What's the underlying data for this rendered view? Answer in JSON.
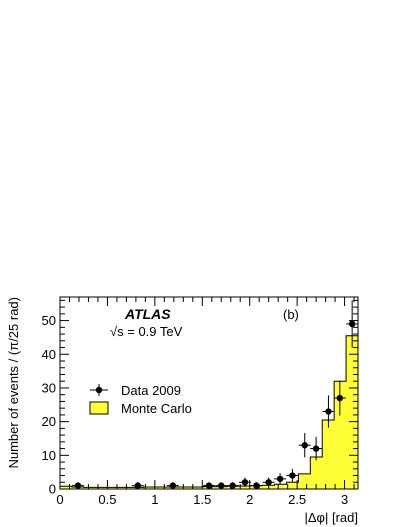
{
  "chart_data": {
    "type": "histogram",
    "experiment_label": "ATLAS",
    "energy_label": "√s = 0.9 TeV",
    "panel_label": "(b)",
    "xlabel": "|Δφ| [rad]",
    "ylabel": "Number of events / (π/25 rad)",
    "xlim": [
      0,
      3.14159
    ],
    "ylim": [
      0,
      57
    ],
    "x_ticks": [
      0,
      0.5,
      1,
      1.5,
      2,
      2.5,
      3
    ],
    "x_tick_labels": [
      "0",
      "0.5",
      "1",
      "1.5",
      "2",
      "2.5",
      "3"
    ],
    "y_ticks": [
      0,
      10,
      20,
      30,
      40,
      50
    ],
    "y_tick_labels": [
      "0",
      "10",
      "20",
      "30",
      "40",
      "50"
    ],
    "bin_width": 0.12566,
    "series": [
      {
        "name": "Data 2009",
        "style": "points-with-errors",
        "x": [
          0.19,
          0.82,
          1.19,
          1.57,
          1.7,
          1.82,
          1.95,
          2.07,
          2.2,
          2.32,
          2.45,
          2.58,
          2.7,
          2.83,
          2.95,
          3.08
        ],
        "values": [
          1,
          1,
          1,
          1,
          1,
          1,
          2,
          1,
          2,
          3,
          4,
          13,
          12,
          23,
          27,
          49
        ],
        "errors": [
          1,
          1,
          1,
          1,
          1,
          1,
          1.4,
          1,
          1.4,
          1.7,
          2,
          3.6,
          3.5,
          4.8,
          5.2,
          7
        ]
      },
      {
        "name": "Monte Carlo",
        "style": "filled-histogram",
        "values": [
          0.8,
          0.6,
          0.5,
          0.5,
          0.5,
          0.5,
          0.5,
          0.6,
          0.6,
          0.6,
          0.6,
          0.6,
          0.7,
          0.7,
          0.8,
          0.9,
          1.0,
          1.1,
          1.4,
          2.0,
          4.5,
          9.5,
          20.5,
          32.0,
          45.5
        ]
      }
    ],
    "legend": {
      "position": "center-left",
      "entries": [
        "Data 2009",
        "Monte Carlo"
      ]
    },
    "colors": {
      "mc_fill": "#ffff33",
      "mc_line": "#000000",
      "data_marker": "#000000"
    },
    "grid": false
  }
}
